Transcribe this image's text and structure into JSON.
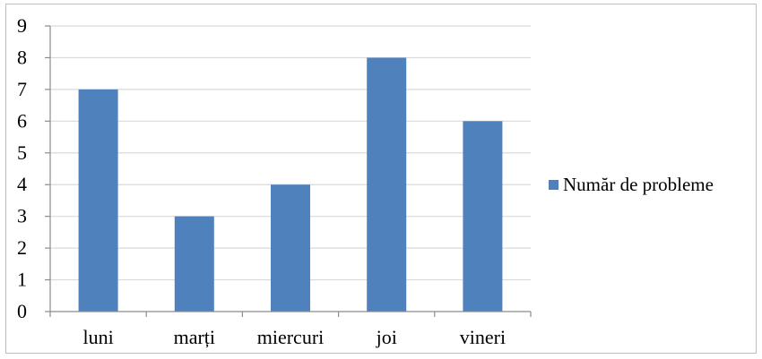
{
  "chart_data": {
    "type": "bar",
    "categories": [
      "luni",
      "marți",
      "miercuri",
      "joi",
      "vineri"
    ],
    "series": [
      {
        "name": "Număr de probleme",
        "values": [
          7,
          3,
          4,
          8,
          6
        ],
        "color": "#4f81bd"
      }
    ],
    "title": "",
    "xlabel": "",
    "ylabel": "",
    "ylim": [
      0,
      9
    ],
    "yticks": [
      0,
      1,
      2,
      3,
      4,
      5,
      6,
      7,
      8,
      9
    ],
    "grid": true,
    "gridColor": "#d9d9d9",
    "axisColor": "#8c8c8c",
    "legend_position": "right"
  }
}
